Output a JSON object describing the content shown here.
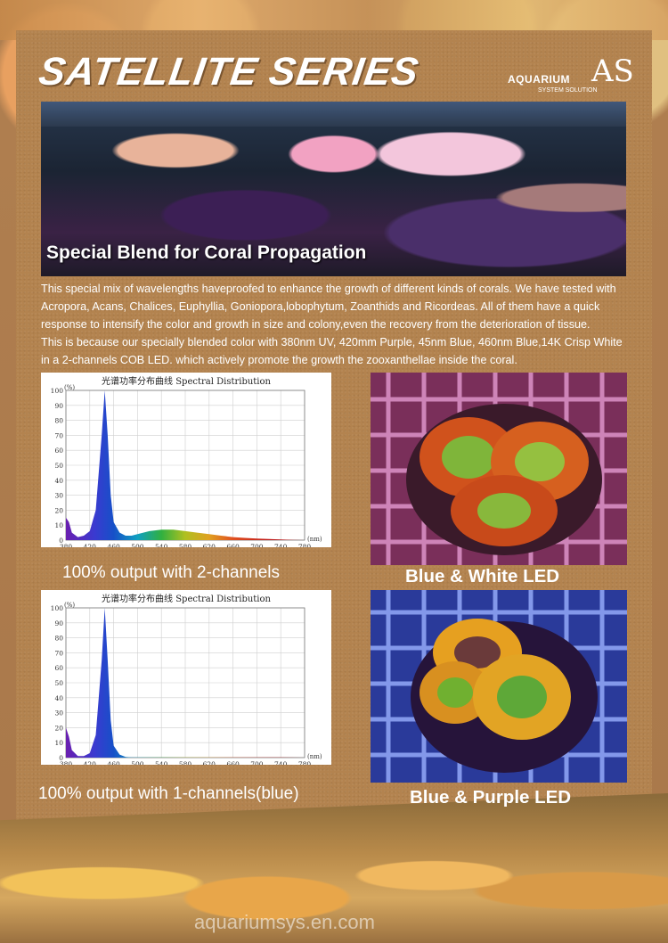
{
  "header": {
    "title": "SATELLITE SERIES",
    "logo_name": "AQUARIUM",
    "logo_sub": "SYSTEM SOLUTION",
    "logo_mark": "AS"
  },
  "hero": {
    "caption": "Special Blend for Coral Propagation"
  },
  "body": {
    "paragraph1": "    This special mix of wavelengths haveproofed to enhance the growth of different kinds of corals. We have tested with Acropora, Acans,  Chalices, Euphyllia,  Goniopora,lobophytum,  Zoanthids and Ricordeas.  All of them have a quick response to intensify the color and growth in size and colony,even the recovery from the deterioration of tissue.",
    "paragraph2": "    This is because our specially blended color with 380nm UV, 420mm Purple, 45nm Blue, 460nm Blue,14K Crisp White in a 2-channels COB LED. which actively promote the growth the zooxanthellae inside the coral."
  },
  "chart_data": [
    {
      "type": "area",
      "title": "光谱功率分布曲线 Spectral Distribution",
      "xlabel": "(nm)",
      "ylabel": "(%)",
      "xlim": [
        380,
        780
      ],
      "ylim": [
        0,
        100
      ],
      "x_ticks": [
        380,
        420,
        460,
        500,
        540,
        580,
        620,
        660,
        700,
        740,
        780
      ],
      "y_ticks": [
        0,
        10,
        20,
        30,
        40,
        50,
        60,
        70,
        80,
        90,
        100
      ],
      "grid": true,
      "x": [
        380,
        385,
        390,
        400,
        410,
        420,
        430,
        440,
        445,
        450,
        455,
        460,
        470,
        480,
        490,
        500,
        520,
        540,
        560,
        580,
        600,
        620,
        640,
        660,
        680,
        700,
        720,
        740,
        760,
        780
      ],
      "y": [
        15,
        12,
        5,
        2,
        3,
        6,
        20,
        70,
        100,
        70,
        30,
        12,
        5,
        3,
        3,
        4,
        6,
        7,
        7,
        6,
        5,
        4,
        3,
        2,
        1.5,
        1,
        0.7,
        0.4,
        0.2,
        0
      ],
      "caption": "100% output with 2-channels"
    },
    {
      "type": "area",
      "title": "光谱功率分布曲线 Spectral Distribution",
      "xlabel": "(nm)",
      "ylabel": "(%)",
      "xlim": [
        380,
        780
      ],
      "ylim": [
        0,
        100
      ],
      "x_ticks": [
        380,
        420,
        460,
        500,
        540,
        580,
        620,
        660,
        700,
        740,
        780
      ],
      "y_ticks": [
        0,
        10,
        20,
        30,
        40,
        50,
        60,
        70,
        80,
        90,
        100
      ],
      "grid": true,
      "x": [
        380,
        385,
        390,
        400,
        410,
        420,
        430,
        440,
        445,
        450,
        455,
        460,
        470,
        480,
        490,
        500,
        540,
        580,
        620,
        660,
        700,
        740,
        780
      ],
      "y": [
        20,
        14,
        5,
        1,
        1,
        3,
        15,
        65,
        100,
        65,
        25,
        8,
        2,
        0.5,
        0.2,
        0.1,
        0.1,
        0.1,
        0.1,
        0.1,
        0.1,
        0.1,
        0
      ],
      "caption": "100% output with 1-channels(blue)"
    }
  ],
  "photos": [
    {
      "caption": "Blue & White LED",
      "tint": "#cc5f8f"
    },
    {
      "caption": "Blue & Purple LED",
      "tint": "#5b6ad6"
    }
  ],
  "footer": {
    "watermark": "aquariumsys.en.com"
  }
}
